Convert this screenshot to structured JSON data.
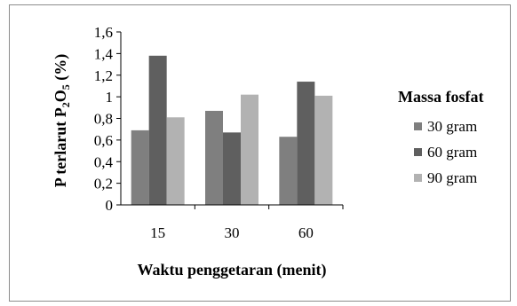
{
  "chart_data": {
    "type": "bar",
    "categories": [
      "15",
      "30",
      "60"
    ],
    "series": [
      {
        "name": "30 gram",
        "values": [
          0.69,
          0.87,
          0.63
        ],
        "color": "#7f7f7f"
      },
      {
        "name": "60 gram",
        "values": [
          1.38,
          0.67,
          1.14
        ],
        "color": "#5f5f5f"
      },
      {
        "name": "90 gram",
        "values": [
          0.81,
          1.02,
          1.01
        ],
        "color": "#b2b2b2"
      }
    ],
    "title": "",
    "xlabel": "Waktu penggetaran (menit)",
    "ylabel": {
      "prefix": "P terlarut P",
      "sub1": "2",
      "mid": "O",
      "sub2": "5",
      "suffix": " (%)"
    },
    "ylim": [
      0,
      1.6
    ],
    "yticks": [
      "0",
      "0,2",
      "0,4",
      "0,6",
      "0,8",
      "1",
      "1,2",
      "1,4",
      "1,6"
    ],
    "legend_title": "Massa fosfat",
    "legend_position": "right",
    "grid": false
  }
}
